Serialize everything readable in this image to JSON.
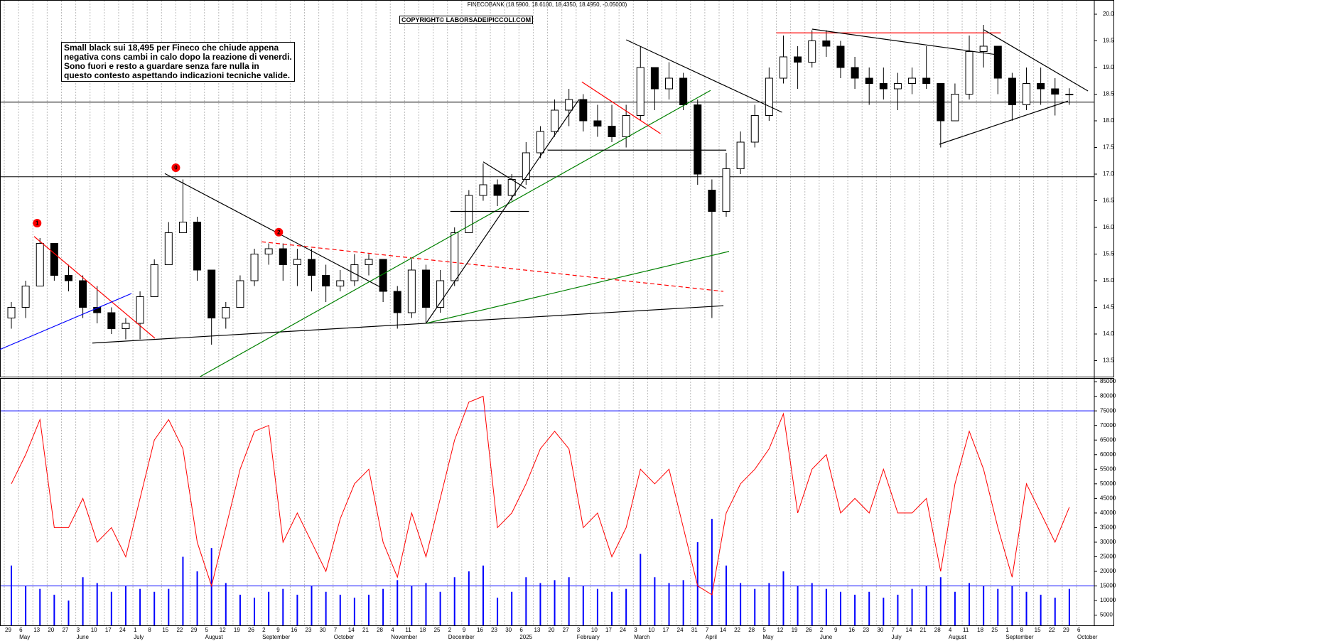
{
  "chart_data": [
    {
      "type": "candlestick",
      "title": "FINECOBANK (18.5900, 18.6100, 18.4350, 18.4950, -0.05000)",
      "watermark": "COPYRIGHT© LABORSADEIPICCOLI.COM",
      "annotation": [
        "Small black sui 18,495 per Fineco che chiude appena",
        "negativa cons cambi in calo dopo la reazione di venerdi.",
        "Sono fuori e resto a guardare senza fare nulla in",
        "questo contesto aspettando indicazioni tecniche valide."
      ],
      "categories": [
        "29",
        "6",
        "13",
        "20",
        "27",
        "3",
        "10",
        "17",
        "24",
        "1",
        "8",
        "15",
        "22",
        "29",
        "5",
        "12",
        "19",
        "26",
        "2",
        "9",
        "16",
        "23",
        "30",
        "7",
        "14",
        "21",
        "28",
        "4",
        "11",
        "18",
        "25",
        "2",
        "9",
        "16",
        "23",
        "30",
        "6",
        "13",
        "20",
        "27",
        "3",
        "10",
        "17",
        "24",
        "3",
        "10",
        "17",
        "24",
        "31",
        "7",
        "14",
        "22",
        "28",
        "5",
        "12",
        "19",
        "26",
        "2",
        "9",
        "16",
        "23",
        "30",
        "7",
        "14",
        "21",
        "28",
        "4",
        "11",
        "18",
        "25",
        "1",
        "8",
        "15",
        "22",
        "29",
        "6"
      ],
      "month_labels": [
        "May",
        "June",
        "July",
        "August",
        "September",
        "October",
        "November",
        "December",
        "2025",
        "February",
        "March",
        "April",
        "May",
        "June",
        "July",
        "August",
        "September",
        "October"
      ],
      "open": [
        14.3,
        14.5,
        14.9,
        15.7,
        15.1,
        15.0,
        14.5,
        14.4,
        14.1,
        14.2,
        14.7,
        15.3,
        15.9,
        16.1,
        15.2,
        14.3,
        14.5,
        15.0,
        15.5,
        15.6,
        15.3,
        15.4,
        15.1,
        14.9,
        15.0,
        15.3,
        15.4,
        14.8,
        14.4,
        15.2,
        14.5,
        15.0,
        15.9,
        16.6,
        16.8,
        16.6,
        16.9,
        17.4,
        17.8,
        18.2,
        18.4,
        18.0,
        17.9,
        17.7,
        18.1,
        19.0,
        18.6,
        18.8,
        18.3,
        16.7,
        16.3,
        17.1,
        17.6,
        18.1,
        18.8,
        19.2,
        19.1,
        19.5,
        19.4,
        19.0,
        18.8,
        18.7,
        18.6,
        18.7,
        18.8,
        18.7,
        18.0,
        18.5,
        19.3,
        19.4,
        18.8,
        18.3,
        18.7,
        18.6,
        18.5,
        null
      ],
      "high": [
        14.6,
        15.0,
        15.8,
        15.7,
        15.3,
        15.1,
        14.9,
        14.5,
        14.3,
        14.8,
        15.4,
        16.1,
        16.9,
        16.2,
        15.2,
        14.6,
        15.1,
        15.6,
        15.7,
        15.7,
        15.6,
        15.6,
        15.3,
        15.2,
        15.5,
        15.5,
        15.4,
        14.9,
        15.4,
        15.3,
        15.2,
        16.0,
        16.7,
        17.2,
        16.9,
        17.0,
        17.6,
        17.9,
        18.4,
        18.6,
        18.5,
        18.3,
        18.3,
        18.3,
        19.4,
        19.0,
        19.1,
        18.9,
        18.4,
        16.9,
        17.4,
        17.8,
        18.3,
        19.0,
        19.6,
        19.4,
        19.7,
        19.7,
        19.5,
        19.2,
        19.0,
        19.0,
        18.9,
        19.0,
        19.4,
        18.7,
        18.7,
        19.6,
        19.8,
        19.4,
        18.9,
        19.0,
        19.0,
        18.8,
        18.61,
        null
      ],
      "low": [
        14.1,
        14.3,
        14.9,
        15.0,
        14.8,
        14.3,
        14.2,
        14.0,
        13.9,
        13.9,
        14.7,
        15.3,
        15.9,
        15.0,
        13.8,
        14.1,
        14.5,
        14.9,
        15.3,
        15.0,
        14.9,
        14.8,
        14.6,
        14.8,
        14.9,
        15.1,
        14.6,
        14.1,
        14.3,
        14.2,
        14.4,
        14.9,
        15.9,
        16.5,
        16.4,
        16.5,
        16.8,
        17.3,
        17.7,
        17.9,
        17.8,
        17.7,
        17.6,
        17.5,
        18.0,
        18.2,
        18.4,
        18.2,
        16.8,
        14.3,
        16.2,
        17.0,
        17.5,
        18.0,
        18.7,
        18.6,
        19.0,
        19.2,
        18.8,
        18.6,
        18.3,
        18.4,
        18.2,
        18.5,
        18.6,
        17.5,
        18.0,
        18.4,
        19.0,
        18.5,
        18.0,
        18.2,
        18.3,
        18.1,
        18.3,
        null
      ],
      "close": [
        14.5,
        14.9,
        15.7,
        15.1,
        15.0,
        14.5,
        14.4,
        14.1,
        14.2,
        14.7,
        15.3,
        15.9,
        16.1,
        15.2,
        14.3,
        14.5,
        15.0,
        15.5,
        15.6,
        15.3,
        15.4,
        15.1,
        14.9,
        15.0,
        15.3,
        15.4,
        14.8,
        14.4,
        15.2,
        14.5,
        15.0,
        15.9,
        16.6,
        16.8,
        16.6,
        16.9,
        17.4,
        17.8,
        18.2,
        18.4,
        18.0,
        17.9,
        17.7,
        18.1,
        19.0,
        18.6,
        18.8,
        18.3,
        17.0,
        16.3,
        17.1,
        17.6,
        18.1,
        18.8,
        19.2,
        19.1,
        19.5,
        19.4,
        19.0,
        18.8,
        18.7,
        18.6,
        18.7,
        18.8,
        18.7,
        18.0,
        18.5,
        19.3,
        19.4,
        18.8,
        18.3,
        18.7,
        18.6,
        18.5,
        18.495,
        null
      ],
      "up_color": "#ffffff",
      "down_color": "#000000",
      "ylim": [
        13.2,
        20.2
      ],
      "yticks": [
        13.5,
        {
          "value": 14,
          "label": "14.0"
        },
        14.5,
        {
          "value": 15,
          "label": "15.0"
        },
        15.5,
        {
          "value": 16,
          "label": "16.0"
        },
        16.5,
        {
          "value": 17,
          "label": "17.0"
        },
        17.5,
        {
          "value": 18,
          "label": "18.0"
        },
        18.5,
        {
          "value": 19,
          "label": "19.0"
        },
        19.5,
        {
          "value": 20,
          "label": "20.0"
        }
      ],
      "grid": true,
      "hlines": [
        16.95,
        18.35
      ],
      "trendlines": [
        {
          "x": [
            6.16,
            50.3
          ],
          "y": [
            13.83,
            14.53
          ],
          "color": "#000000"
        },
        {
          "x": [
            11.23,
            26.8
          ],
          "y": [
            17.01,
            14.81
          ],
          "color": "#000000"
        },
        {
          "x": [
            2.09,
            10.54
          ],
          "y": [
            15.83,
            13.92
          ],
          "color": "#ff0000"
        },
        {
          "x": [
            -0.3,
            8.9
          ],
          "y": [
            13.71,
            14.76
          ],
          "color": "#0000ff"
        },
        {
          "x": [
            18.0,
            50.3
          ],
          "y": [
            15.73,
            14.8
          ],
          "color": "#ff0000",
          "dash": true
        },
        {
          "x": [
            13.7,
            49.4
          ],
          "y": [
            13.2,
            18.57
          ],
          "color": "#008000"
        },
        {
          "x": [
            29.5,
            50.7
          ],
          "y": [
            14.2,
            15.55
          ],
          "color": "#008000"
        },
        {
          "x": [
            29.5,
            40.2
          ],
          "y": [
            14.2,
            18.4
          ],
          "color": "#000000"
        },
        {
          "x": [
            33.5,
            36.5
          ],
          "y": [
            17.23,
            16.73
          ],
          "color": "#000000"
        },
        {
          "x": [
            31.2,
            36.7
          ],
          "y": [
            16.3,
            16.3
          ],
          "color": "#000000"
        },
        {
          "x": [
            38.0,
            50.5
          ],
          "y": [
            17.45,
            17.45
          ],
          "color": "#000000"
        },
        {
          "x": [
            40.4,
            45.9
          ],
          "y": [
            18.73,
            17.76
          ],
          "color": "#ff0000"
        },
        {
          "x": [
            43.5,
            54.4
          ],
          "y": [
            19.52,
            18.16
          ],
          "color": "#000000"
        },
        {
          "x": [
            54.0,
            69.7
          ],
          "y": [
            19.65,
            19.65
          ],
          "color": "#ff0000"
        },
        {
          "x": [
            56.5,
            69.7
          ],
          "y": [
            19.72,
            19.23
          ],
          "color": "#000000"
        },
        {
          "x": [
            68.5,
            75.8
          ],
          "y": [
            19.71,
            18.56
          ],
          "color": "#000000"
        },
        {
          "x": [
            65.4,
            74.4
          ],
          "y": [
            17.56,
            18.37
          ],
          "color": "#000000"
        }
      ],
      "markers": [
        {
          "label": "1",
          "x": 2.3,
          "y": 16.08
        },
        {
          "label": "0",
          "x": 12.0,
          "y": 17.12
        },
        {
          "label": "2",
          "x": 19.2,
          "y": 15.91
        }
      ],
      "marker_color": "#ff0000"
    },
    {
      "type": "bar",
      "series": [
        {
          "type": "bar",
          "color": "#0000ff",
          "values": [
            22000,
            15000,
            14000,
            12000,
            10000,
            18000,
            16000,
            13000,
            15000,
            14000,
            13000,
            14000,
            25000,
            20000,
            28000,
            16000,
            12000,
            11000,
            13000,
            14000,
            12000,
            15000,
            13000,
            12000,
            11000,
            12000,
            14000,
            17000,
            15000,
            16000,
            13000,
            18000,
            20000,
            22000,
            11000,
            13000,
            18000,
            16000,
            17000,
            18000,
            15000,
            14000,
            13000,
            14000,
            26000,
            18000,
            16000,
            17000,
            30000,
            38000,
            22000,
            16000,
            14000,
            16000,
            20000,
            15000,
            16000,
            14000,
            13000,
            12000,
            13000,
            11000,
            12000,
            14000,
            15000,
            18000,
            13000,
            16000,
            15000,
            14000,
            15000,
            13000,
            12000,
            11000,
            14000,
            null
          ]
        },
        {
          "type": "line",
          "color": "#ff0000",
          "values": [
            50000,
            60000,
            72000,
            35000,
            35000,
            45000,
            30000,
            35000,
            25000,
            45000,
            65000,
            72000,
            62000,
            30000,
            15000,
            35000,
            55000,
            68000,
            70000,
            30000,
            40000,
            30000,
            20000,
            38000,
            50000,
            55000,
            30000,
            18000,
            40000,
            25000,
            45000,
            65000,
            78000,
            80000,
            35000,
            40000,
            50000,
            62000,
            68000,
            62000,
            35000,
            40000,
            25000,
            35000,
            55000,
            50000,
            55000,
            35000,
            15000,
            12000,
            40000,
            50000,
            55000,
            62000,
            74000,
            40000,
            55000,
            60000,
            40000,
            45000,
            40000,
            55000,
            40000,
            40000,
            45000,
            20000,
            50000,
            68000,
            55000,
            35000,
            18000,
            50000,
            40000,
            30000,
            42000,
            null
          ]
        }
      ],
      "ylim": [
        1500,
        86000
      ],
      "yticks": [
        5000,
        10000,
        15000,
        20000,
        25000,
        30000,
        35000,
        40000,
        45000,
        50000,
        55000,
        60000,
        65000,
        70000,
        75000,
        80000,
        85000
      ],
      "hlines": [
        75000,
        15000
      ],
      "hline_color": "#0000ff"
    }
  ]
}
